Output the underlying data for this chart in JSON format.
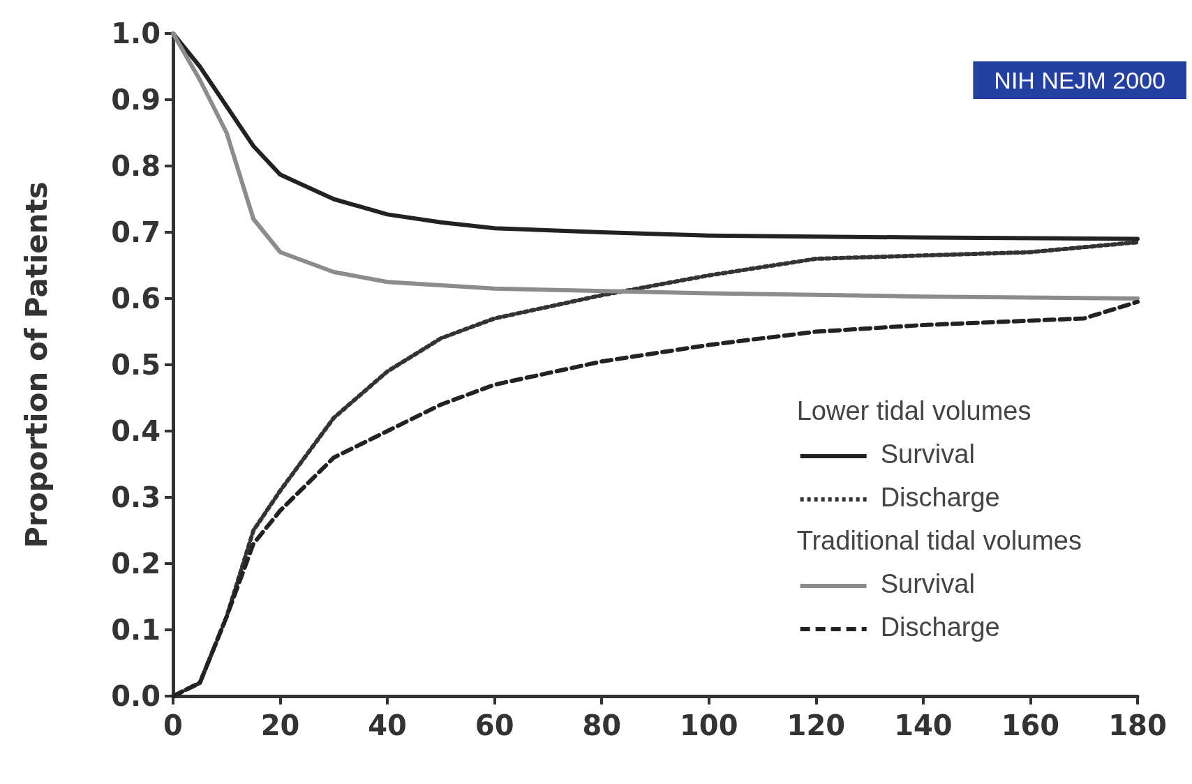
{
  "chart_data": {
    "type": "line",
    "ylabel": "Proportion of Patients",
    "annotations": [
      "Lower tidal volumes",
      "Traditional tidal volumes",
      "NIH NEJM 2000"
    ],
    "xlim": [
      0,
      180
    ],
    "xticks": [
      0,
      20,
      40,
      60,
      80,
      100,
      120,
      140,
      160,
      180
    ],
    "ylim": [
      0,
      1
    ],
    "yticks": [
      {
        "value": 0,
        "label": "0.0"
      },
      0.1,
      0.2,
      0.3,
      0.4,
      0.5,
      0.6,
      0.7,
      0.8,
      0.9,
      {
        "value": 1,
        "label": "1.0"
      }
    ],
    "legend": "bottom right",
    "grid": false,
    "marker": "none",
    "series": [
      {
        "name": "Survival",
        "color": "#222222",
        "line_style": "solid",
        "x": [
          0,
          5,
          10,
          15,
          20,
          30,
          40,
          50,
          60,
          80,
          100,
          140,
          180
        ],
        "values": [
          1.0,
          0.95,
          0.89,
          0.83,
          0.787,
          0.75,
          0.727,
          0.715,
          0.706,
          0.7,
          0.695,
          0.692,
          0.69
        ]
      },
      {
        "name": "Discharge",
        "color": "#333333",
        "line_style": "dotted",
        "x": [
          0,
          5,
          10,
          15,
          20,
          30,
          40,
          50,
          60,
          80,
          100,
          120,
          140,
          160,
          180
        ],
        "values": [
          0,
          0.02,
          0.12,
          0.25,
          0.31,
          0.42,
          0.49,
          0.54,
          0.57,
          0.605,
          0.635,
          0.66,
          0.665,
          0.67,
          0.685
        ]
      },
      {
        "name": "Survival",
        "color": "#8c8c8c",
        "line_style": "solid",
        "x": [
          0,
          5,
          10,
          15,
          20,
          30,
          40,
          50,
          60,
          100,
          140,
          180
        ],
        "values": [
          1.0,
          0.93,
          0.85,
          0.72,
          0.67,
          0.64,
          0.625,
          0.62,
          0.615,
          0.608,
          0.603,
          0.6
        ]
      },
      {
        "name": "Discharge",
        "color": "#222222",
        "line_style": "dashed",
        "x": [
          0,
          5,
          10,
          15,
          20,
          30,
          40,
          50,
          60,
          80,
          100,
          120,
          140,
          170,
          180
        ],
        "values": [
          0,
          0.02,
          0.12,
          0.23,
          0.28,
          0.36,
          0.4,
          0.44,
          0.47,
          0.505,
          0.53,
          0.55,
          0.56,
          0.57,
          0.595
        ]
      }
    ]
  }
}
